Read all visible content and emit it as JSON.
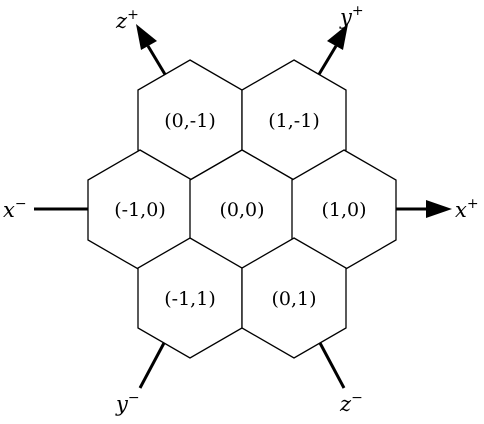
{
  "cells": [
    {
      "id": "c-0-m1",
      "label": "(0,-1)"
    },
    {
      "id": "c-1-m1",
      "label": "(1,-1)"
    },
    {
      "id": "c-m1-0",
      "label": "(-1,0)"
    },
    {
      "id": "c-0-0",
      "label": "(0,0)"
    },
    {
      "id": "c-1-0",
      "label": "(1,0)"
    },
    {
      "id": "c-m1-1",
      "label": "(-1,1)"
    },
    {
      "id": "c-0-1",
      "label": "(0,1)"
    }
  ],
  "axes": [
    {
      "id": "z-plus",
      "base": "z",
      "sign": "+"
    },
    {
      "id": "y-plus",
      "base": "y",
      "sign": "+"
    },
    {
      "id": "x-minus",
      "base": "x",
      "sign": "−"
    },
    {
      "id": "x-plus",
      "base": "x",
      "sign": "+"
    },
    {
      "id": "y-minus",
      "base": "y",
      "sign": "−"
    },
    {
      "id": "z-minus",
      "base": "z",
      "sign": "−"
    }
  ]
}
